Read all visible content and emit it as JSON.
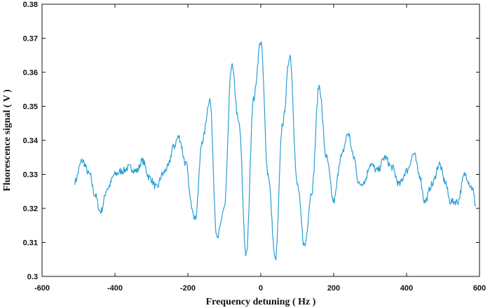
{
  "chart_data": {
    "type": "line",
    "title": "",
    "xlabel": "Frequency detuning ( Hz )",
    "ylabel": "Fluorescence signal ( V )",
    "xlim": [
      -600,
      600
    ],
    "ylim": [
      0.3,
      0.38
    ],
    "xticks": [
      -600,
      -400,
      -200,
      0,
      200,
      400,
      600
    ],
    "yticks": [
      0.3,
      0.31,
      0.32,
      0.33,
      0.34,
      0.35,
      0.36,
      0.37,
      0.38
    ],
    "ytick_labels": [
      "0.3",
      "0.31",
      "0.32",
      "0.33",
      "0.34",
      "0.35",
      "0.36",
      "0.37",
      "0.38"
    ],
    "grid": false,
    "legend": "none",
    "series": [
      {
        "color": "#2a9fd6",
        "x": [
          -510,
          -490,
          -470,
          -455,
          -440,
          -420,
          -400,
          -380,
          -360,
          -340,
          -325,
          -305,
          -285,
          -270,
          -255,
          -240,
          -225,
          -205,
          -190,
          -180,
          -160,
          -140,
          -120,
          -100,
          -80,
          -60,
          -40,
          -20,
          0,
          20,
          40,
          60,
          80,
          100,
          120,
          140,
          160,
          180,
          200,
          220,
          240,
          255,
          270,
          285,
          300,
          320,
          340,
          360,
          380,
          400,
          420,
          435,
          450,
          470,
          490,
          505,
          520,
          540,
          560,
          580,
          590
        ],
        "y": [
          0.328,
          0.334,
          0.33,
          0.324,
          0.319,
          0.326,
          0.33,
          0.331,
          0.332,
          0.331,
          0.334,
          0.329,
          0.326,
          0.33,
          0.332,
          0.338,
          0.341,
          0.333,
          0.321,
          0.317,
          0.34,
          0.352,
          0.311,
          0.32,
          0.362,
          0.345,
          0.306,
          0.352,
          0.369,
          0.33,
          0.305,
          0.345,
          0.365,
          0.327,
          0.309,
          0.325,
          0.356,
          0.335,
          0.322,
          0.335,
          0.342,
          0.335,
          0.327,
          0.328,
          0.333,
          0.331,
          0.335,
          0.332,
          0.327,
          0.331,
          0.336,
          0.33,
          0.322,
          0.327,
          0.333,
          0.328,
          0.322,
          0.322,
          0.33,
          0.326,
          0.321
        ]
      }
    ]
  }
}
